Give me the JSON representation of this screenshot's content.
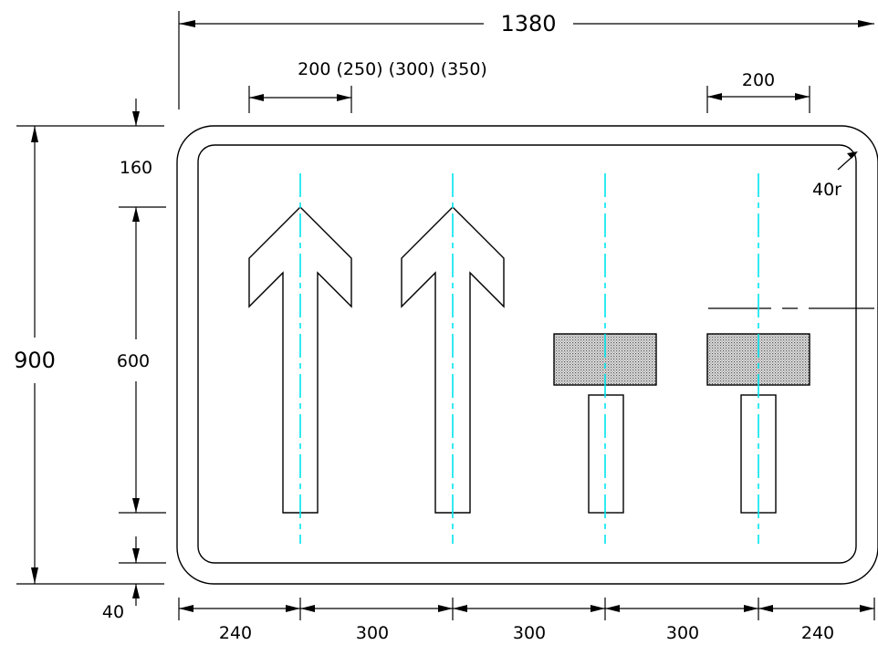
{
  "dimensions": {
    "overall_width": "1380",
    "overall_height": "900",
    "top_margin": "160",
    "arrow_height": "600",
    "bottom_margin": "40",
    "corner_radius": "40r",
    "arrow_widths": "200 (250) (300) (350)",
    "block_width": "200",
    "bottom_spacings": [
      "240",
      "300",
      "300",
      "300",
      "240"
    ]
  },
  "colors": {
    "centerline": "#00e5ee",
    "outline": "#000000",
    "hatch_fill": "#b3b3b3"
  }
}
